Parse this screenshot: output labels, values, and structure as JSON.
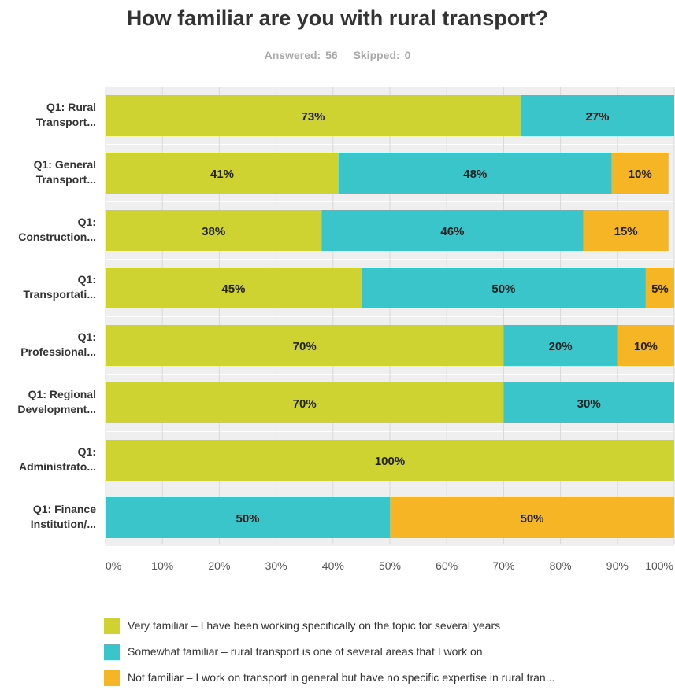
{
  "title": "How familiar are you with rural transport?",
  "stats": {
    "answered": "Answered: 56",
    "skipped": "Skipped: 0"
  },
  "colors": {
    "very": "#cfd332",
    "somewhat": "#39c5c9",
    "not": "#f5b525",
    "track": "#efefef",
    "grid": "#d9d9d9"
  },
  "chart_data": {
    "type": "bar",
    "orientation": "horizontal",
    "stacked": true,
    "categories": [
      [
        "Q1: Rural",
        "Transport..."
      ],
      [
        "Q1: General",
        "Transport..."
      ],
      [
        "Q1:",
        "Construction..."
      ],
      [
        "Q1:",
        "Transportati..."
      ],
      [
        "Q1:",
        "Professional..."
      ],
      [
        "Q1: Regional",
        "Development..."
      ],
      [
        "Q1:",
        "Administrato..."
      ],
      [
        "Q1: Finance",
        "Institution/..."
      ]
    ],
    "series": [
      {
        "name": "Very familiar – I have been working specifically on the topic for several years",
        "color_key": "very",
        "values": [
          73,
          41,
          38,
          45,
          70,
          70,
          100,
          0
        ]
      },
      {
        "name": "Somewhat familiar – rural transport is one of several areas that I work on",
        "color_key": "somewhat",
        "values": [
          27,
          48,
          46,
          50,
          20,
          30,
          0,
          50
        ]
      },
      {
        "name": "Not familiar – I work on transport in general but have no specific expertise in rural tran...",
        "color_key": "not",
        "values": [
          0,
          10,
          15,
          5,
          10,
          0,
          0,
          50
        ]
      }
    ],
    "xticks": [
      "0%",
      "10%",
      "20%",
      "30%",
      "40%",
      "50%",
      "60%",
      "70%",
      "80%",
      "90%",
      "100%"
    ],
    "xlim": [
      0,
      100
    ],
    "grid": true,
    "legend_position": "bottom"
  }
}
